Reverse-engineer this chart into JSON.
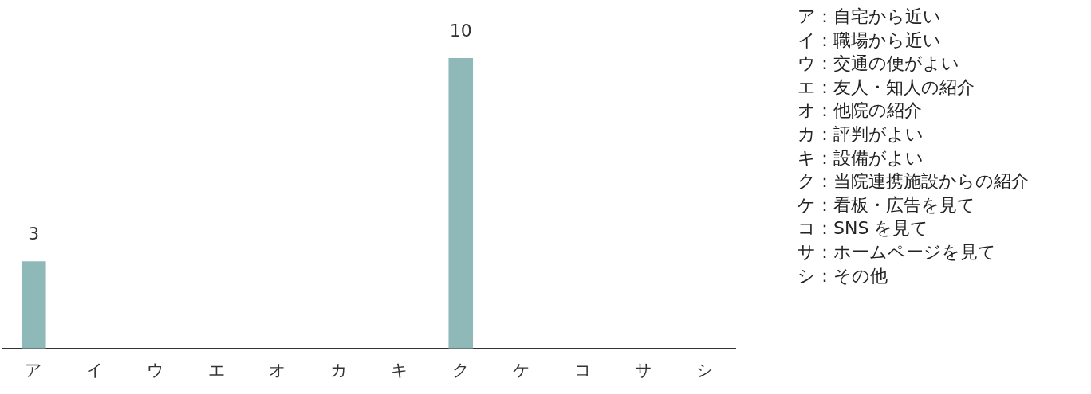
{
  "chart_data": {
    "type": "bar",
    "categories": [
      "ア",
      "イ",
      "ウ",
      "エ",
      "オ",
      "カ",
      "キ",
      "ク",
      "ケ",
      "コ",
      "サ",
      "シ"
    ],
    "values": [
      3,
      0,
      0,
      0,
      0,
      0,
      0,
      10,
      0,
      0,
      0,
      0
    ],
    "color": "#8fb8b8",
    "value_labels": [
      "3",
      null,
      null,
      null,
      null,
      null,
      null,
      "10",
      null,
      null,
      null,
      null
    ],
    "annotations": [
      "ア：自宅から近い",
      "イ：職場から近い",
      "ウ：交通の便がよい",
      "エ：友人・知人の紹介",
      "オ：他院の紹介",
      "カ：評判がよい",
      "キ：設備がよい",
      "ク：当院連携施設からの紹介",
      "ケ：看板・広告を見て",
      "コ：SNS を見て",
      "サ：ホームページを見て",
      "シ：その他"
    ]
  }
}
